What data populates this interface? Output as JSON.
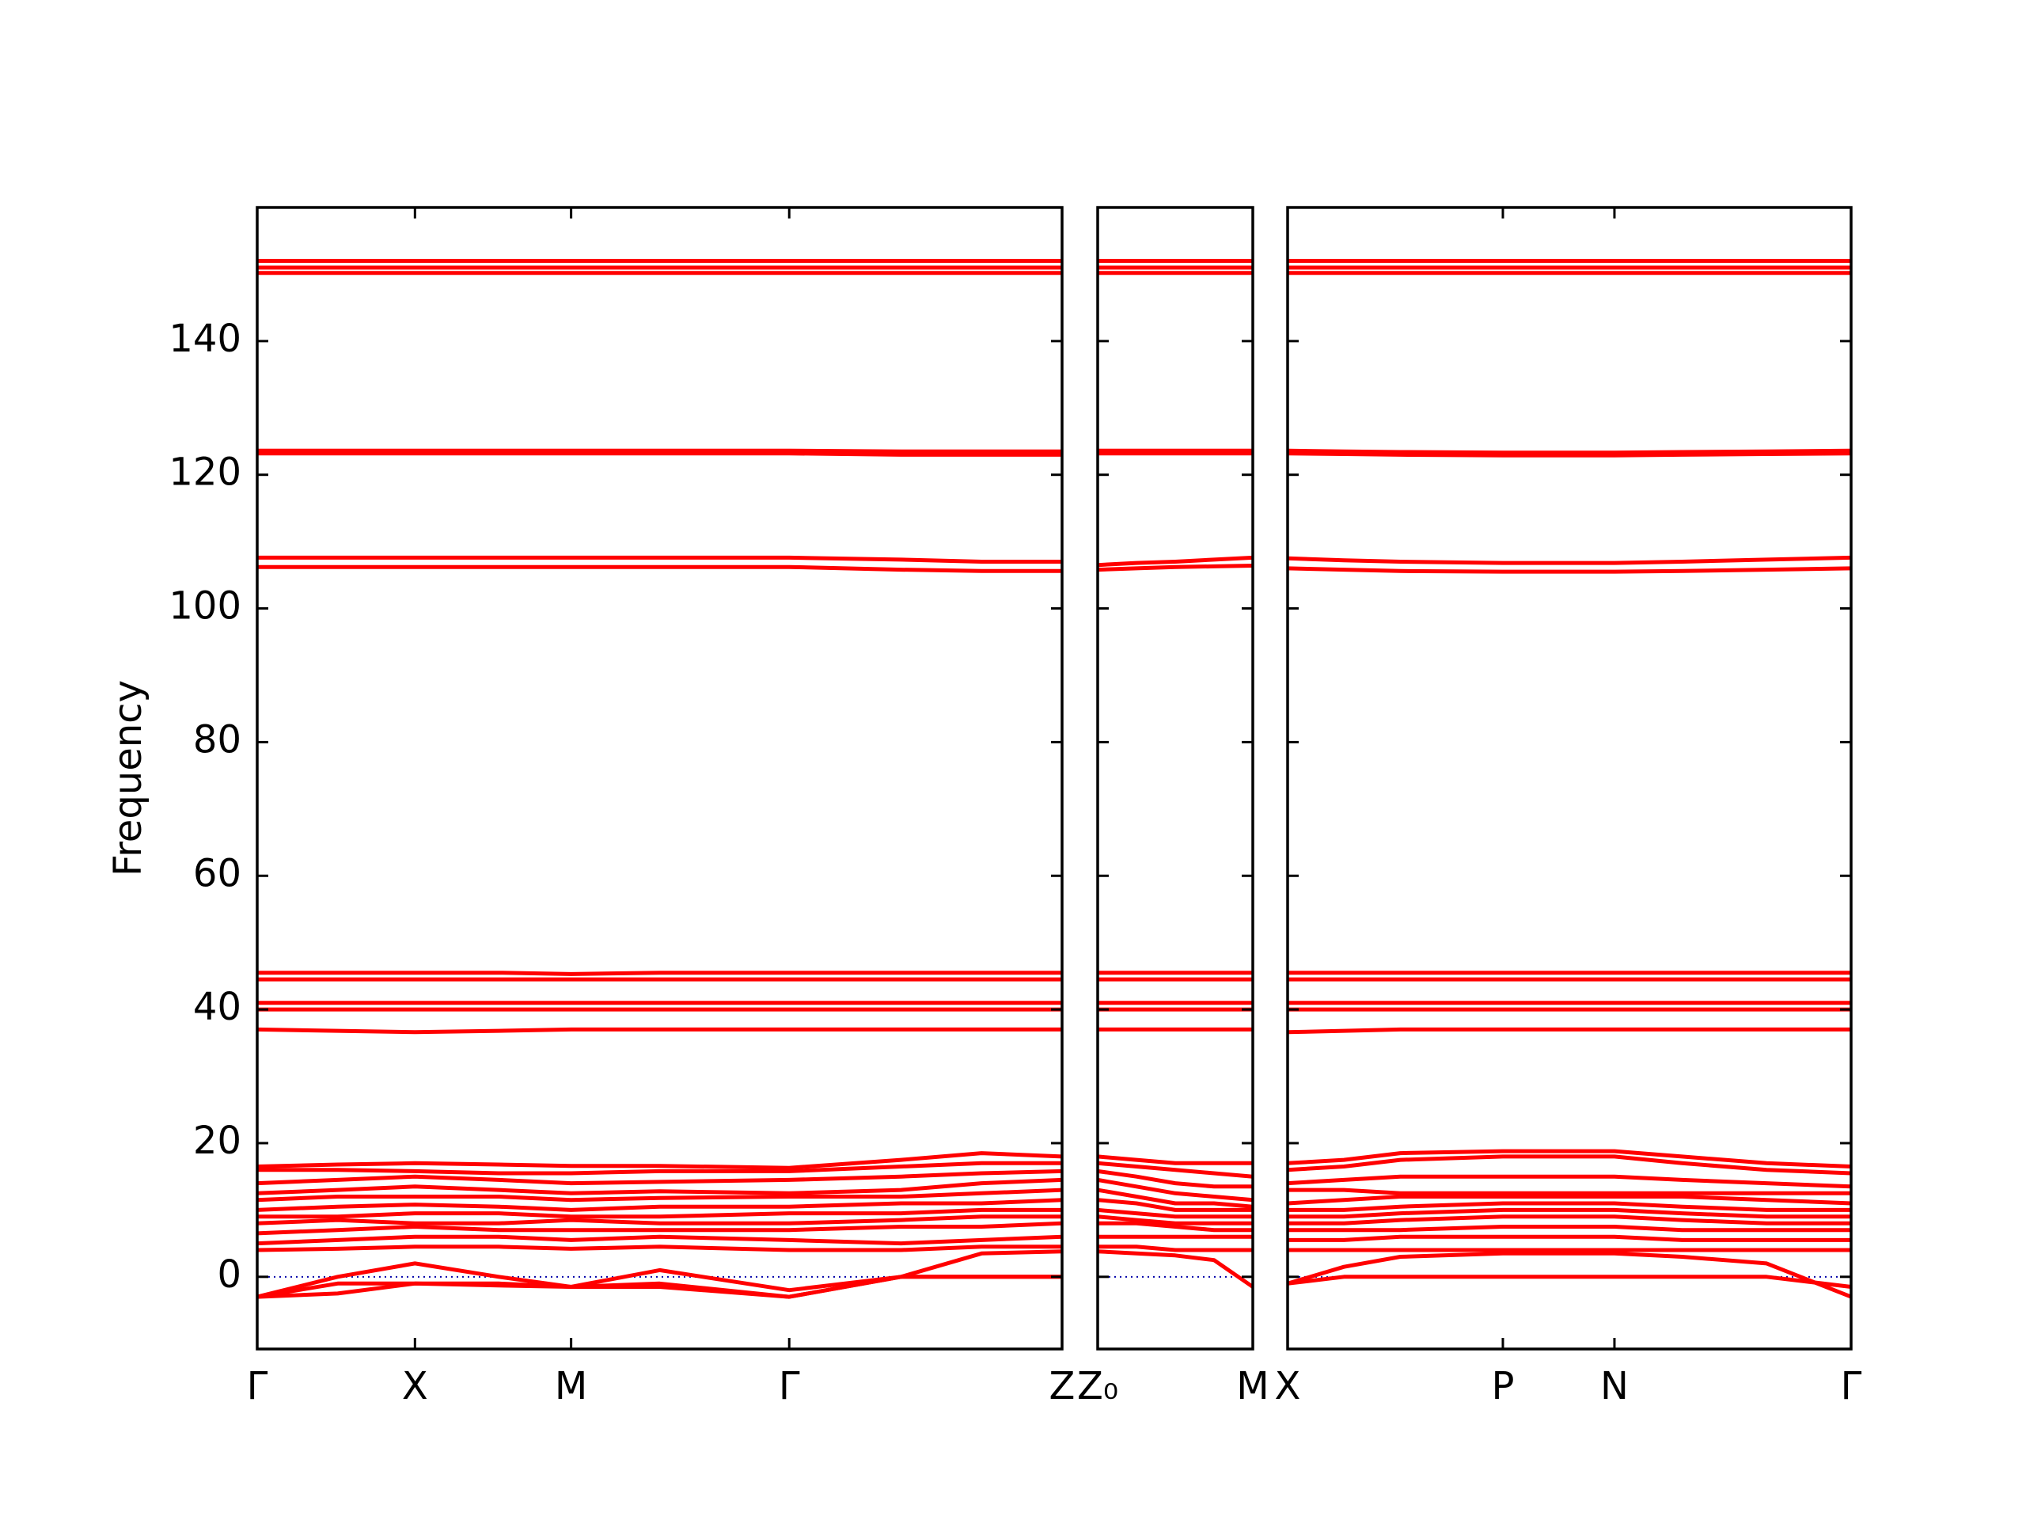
{
  "chart_data": [
    {
      "type": "line",
      "ylabel": "Frequency",
      "color": "#ff0000",
      "ylim": [
        -10.8,
        160
      ],
      "yticks": [
        0,
        20,
        40,
        60,
        80,
        100,
        120,
        140
      ],
      "reference_line": {
        "value": 0,
        "color": "#0000aa"
      },
      "xlim": [
        0,
        1
      ],
      "xticks": [
        {
          "value": 0,
          "label": "Γ"
        },
        {
          "value": 0.196,
          "label": "X"
        },
        {
          "value": 0.39,
          "label": "M"
        },
        {
          "value": 0.661,
          "label": "Γ"
        },
        {
          "value": 1,
          "label": "Z"
        }
      ],
      "x": [
        0,
        0.1,
        0.196,
        0.3,
        0.39,
        0.5,
        0.661,
        0.8,
        0.9,
        1
      ],
      "series": [
        {
          "values": [
            152,
            152,
            152,
            152,
            152,
            152,
            152,
            152,
            152,
            152
          ]
        },
        {
          "values": [
            151,
            151,
            151,
            151,
            151,
            151,
            151,
            151,
            151,
            151
          ]
        },
        {
          "values": [
            150.2,
            150.2,
            150.2,
            150.2,
            150.2,
            150.2,
            150.2,
            150.2,
            150.2,
            150.2
          ]
        },
        {
          "values": [
            123.6,
            123.6,
            123.6,
            123.6,
            123.6,
            123.6,
            123.6,
            123.5,
            123.5,
            123.5
          ]
        },
        {
          "values": [
            123.2,
            123.2,
            123.2,
            123.2,
            123.2,
            123.2,
            123.2,
            123,
            123,
            123
          ]
        },
        {
          "values": [
            107.6,
            107.6,
            107.6,
            107.6,
            107.6,
            107.6,
            107.6,
            107.3,
            107,
            107
          ]
        },
        {
          "values": [
            106.2,
            106.2,
            106.2,
            106.2,
            106.2,
            106.2,
            106.2,
            105.8,
            105.6,
            105.6
          ]
        },
        {
          "values": [
            45.5,
            45.5,
            45.5,
            45.5,
            45.3,
            45.5,
            45.5,
            45.5,
            45.5,
            45.5
          ]
        },
        {
          "values": [
            44.5,
            44.5,
            44.5,
            44.5,
            44.5,
            44.5,
            44.5,
            44.5,
            44.5,
            44.5
          ]
        },
        {
          "values": [
            41,
            41,
            41,
            41,
            41,
            41,
            41,
            41,
            41,
            41
          ]
        },
        {
          "values": [
            40,
            40,
            40,
            40,
            40,
            40,
            40,
            40,
            40,
            40
          ]
        },
        {
          "values": [
            37,
            36.8,
            36.6,
            36.8,
            37,
            37,
            37,
            37,
            37,
            37
          ]
        },
        {
          "values": [
            16.5,
            16.8,
            17,
            16.8,
            16.6,
            16.6,
            16.3,
            17.5,
            18.5,
            18
          ]
        },
        {
          "values": [
            16,
            16,
            15.8,
            15.5,
            15.5,
            15.8,
            15.8,
            16.5,
            17,
            17
          ]
        },
        {
          "values": [
            14,
            14.5,
            15,
            14.5,
            14,
            14.2,
            14.5,
            15,
            15.5,
            15.8
          ]
        },
        {
          "values": [
            12.5,
            13,
            13.5,
            13,
            12.5,
            12.8,
            12.5,
            13,
            14,
            14.5
          ]
        },
        {
          "values": [
            11.5,
            12,
            12,
            12,
            11.5,
            11.8,
            12,
            12,
            12.5,
            13
          ]
        },
        {
          "values": [
            10,
            10.5,
            10.8,
            10.5,
            10,
            10.5,
            10.5,
            11,
            11,
            11.5
          ]
        },
        {
          "values": [
            9,
            9,
            9.5,
            9.5,
            9,
            9,
            9.5,
            9.5,
            10,
            10
          ]
        },
        {
          "values": [
            8,
            8.5,
            8,
            8,
            8.5,
            8,
            8,
            8.5,
            9,
            9
          ]
        },
        {
          "values": [
            6.5,
            7,
            7.5,
            7,
            7,
            7,
            7,
            7.5,
            7.5,
            8
          ]
        },
        {
          "values": [
            5,
            5.5,
            6,
            6,
            5.5,
            6,
            5.5,
            5,
            5.5,
            6
          ]
        },
        {
          "values": [
            4,
            4.2,
            4.5,
            4.5,
            4.2,
            4.5,
            4,
            4,
            4.5,
            4.5
          ]
        },
        {
          "values": [
            -3,
            -2.5,
            -1,
            -1.3,
            -1.5,
            -1.5,
            -3,
            0,
            3.5,
            3.8
          ]
        },
        {
          "values": [
            -3,
            0,
            2,
            0,
            -1.5,
            1,
            -2,
            0,
            0,
            0
          ]
        },
        {
          "values": [
            -3,
            -1,
            -1,
            -1,
            -1.5,
            -1,
            -3,
            0,
            0,
            0
          ]
        }
      ]
    },
    {
      "type": "line",
      "color": "#ff0000",
      "xlim": [
        0,
        1
      ],
      "xticks": [
        {
          "value": 0,
          "label": "Z₀"
        },
        {
          "value": 1,
          "label": "M"
        }
      ],
      "x": [
        0,
        0.25,
        0.5,
        0.75,
        1
      ],
      "series": [
        {
          "values": [
            152,
            152,
            152,
            152,
            152
          ]
        },
        {
          "values": [
            151,
            151,
            151,
            151,
            151
          ]
        },
        {
          "values": [
            150.2,
            150.2,
            150.2,
            150.2,
            150.2
          ]
        },
        {
          "values": [
            123.6,
            123.6,
            123.6,
            123.6,
            123.6
          ]
        },
        {
          "values": [
            123.2,
            123.2,
            123.2,
            123.2,
            123.2
          ]
        },
        {
          "values": [
            106.5,
            106.8,
            107,
            107.3,
            107.6
          ]
        },
        {
          "values": [
            105.8,
            106,
            106.2,
            106.3,
            106.4
          ]
        },
        {
          "values": [
            45.5,
            45.5,
            45.5,
            45.5,
            45.5
          ]
        },
        {
          "values": [
            44.5,
            44.5,
            44.5,
            44.5,
            44.5
          ]
        },
        {
          "values": [
            41,
            41,
            41,
            41,
            41
          ]
        },
        {
          "values": [
            40,
            40,
            40,
            40,
            40
          ]
        },
        {
          "values": [
            37,
            37,
            37,
            37,
            37
          ]
        },
        {
          "values": [
            18,
            17.5,
            17,
            17,
            17
          ]
        },
        {
          "values": [
            17,
            16.5,
            16,
            15.5,
            15
          ]
        },
        {
          "values": [
            15.8,
            15,
            14,
            13.5,
            13.5
          ]
        },
        {
          "values": [
            14.5,
            13.5,
            12.5,
            12,
            11.5
          ]
        },
        {
          "values": [
            13,
            12,
            11,
            11,
            10.5
          ]
        },
        {
          "values": [
            11.5,
            11,
            10,
            10,
            10
          ]
        },
        {
          "values": [
            10,
            9.5,
            9,
            9,
            9
          ]
        },
        {
          "values": [
            9,
            8.5,
            8,
            8,
            8
          ]
        },
        {
          "values": [
            8,
            8,
            7.5,
            7,
            7
          ]
        },
        {
          "values": [
            6,
            6,
            6,
            6,
            6
          ]
        },
        {
          "values": [
            4.5,
            4.5,
            4,
            4,
            4
          ]
        },
        {
          "values": [
            3.8,
            3.5,
            3.2,
            2.5,
            -1.5
          ]
        }
      ]
    },
    {
      "type": "line",
      "color": "#ff0000",
      "xlim": [
        0,
        1
      ],
      "xticks": [
        {
          "value": 0,
          "label": "X"
        },
        {
          "value": 0.382,
          "label": "P"
        },
        {
          "value": 0.58,
          "label": "N"
        },
        {
          "value": 1,
          "label": "Γ"
        }
      ],
      "x": [
        0,
        0.1,
        0.2,
        0.382,
        0.5,
        0.58,
        0.7,
        0.85,
        1
      ],
      "series": [
        {
          "values": [
            152,
            152,
            152,
            152,
            152,
            152,
            152,
            152,
            152
          ]
        },
        {
          "values": [
            151,
            151,
            151,
            151,
            151,
            151,
            151,
            151,
            151
          ]
        },
        {
          "values": [
            150.2,
            150.2,
            150.2,
            150.2,
            150.2,
            150.2,
            150.2,
            150.2,
            150.2
          ]
        },
        {
          "values": [
            123.6,
            123.5,
            123.4,
            123.3,
            123.3,
            123.3,
            123.4,
            123.5,
            123.6
          ]
        },
        {
          "values": [
            123.2,
            123.1,
            123,
            122.9,
            122.9,
            122.9,
            123,
            123.1,
            123.2
          ]
        },
        {
          "values": [
            107.5,
            107.2,
            107,
            106.8,
            106.8,
            106.8,
            107,
            107.3,
            107.6
          ]
        },
        {
          "values": [
            106,
            105.8,
            105.6,
            105.5,
            105.5,
            105.5,
            105.6,
            105.8,
            106
          ]
        },
        {
          "values": [
            45.5,
            45.5,
            45.5,
            45.5,
            45.5,
            45.5,
            45.5,
            45.5,
            45.5
          ]
        },
        {
          "values": [
            44.5,
            44.5,
            44.5,
            44.5,
            44.5,
            44.5,
            44.5,
            44.5,
            44.5
          ]
        },
        {
          "values": [
            41,
            41,
            41,
            41,
            41,
            41,
            41,
            41,
            41
          ]
        },
        {
          "values": [
            40,
            40,
            40,
            40,
            40,
            40,
            40,
            40,
            40
          ]
        },
        {
          "values": [
            36.6,
            36.8,
            37,
            37,
            37,
            37,
            37,
            37,
            37
          ]
        },
        {
          "values": [
            17,
            17.5,
            18.5,
            18.8,
            18.8,
            18.8,
            18,
            17,
            16.5
          ]
        },
        {
          "values": [
            16,
            16.5,
            17.5,
            18,
            18,
            18,
            17,
            16,
            15.5
          ]
        },
        {
          "values": [
            14,
            14.5,
            15,
            15,
            15,
            15,
            14.5,
            14,
            13.5
          ]
        },
        {
          "values": [
            13,
            13,
            12.5,
            12.5,
            12.5,
            12.5,
            12.5,
            12.5,
            12.5
          ]
        },
        {
          "values": [
            11,
            11.5,
            12,
            12,
            12,
            12,
            12,
            11.5,
            11
          ]
        },
        {
          "values": [
            10,
            10,
            10.5,
            11,
            11,
            11,
            10.5,
            10,
            10
          ]
        },
        {
          "values": [
            9,
            9,
            9.5,
            10,
            10,
            10,
            9.5,
            9,
            9
          ]
        },
        {
          "values": [
            8,
            8,
            8.5,
            9,
            9,
            9,
            8.5,
            8,
            8
          ]
        },
        {
          "values": [
            7,
            7,
            7,
            7.5,
            7.5,
            7.5,
            7,
            7,
            7
          ]
        },
        {
          "values": [
            5.5,
            5.5,
            6,
            6,
            6,
            6,
            5.5,
            5.5,
            5.5
          ]
        },
        {
          "values": [
            4,
            4,
            4,
            4,
            4,
            4,
            4,
            4,
            4
          ]
        },
        {
          "values": [
            -1,
            1.5,
            3,
            3.5,
            3.5,
            3.5,
            3,
            2,
            -3
          ]
        },
        {
          "values": [
            -1,
            0,
            0,
            0,
            0,
            0,
            0,
            0,
            -1.5
          ]
        }
      ]
    }
  ]
}
